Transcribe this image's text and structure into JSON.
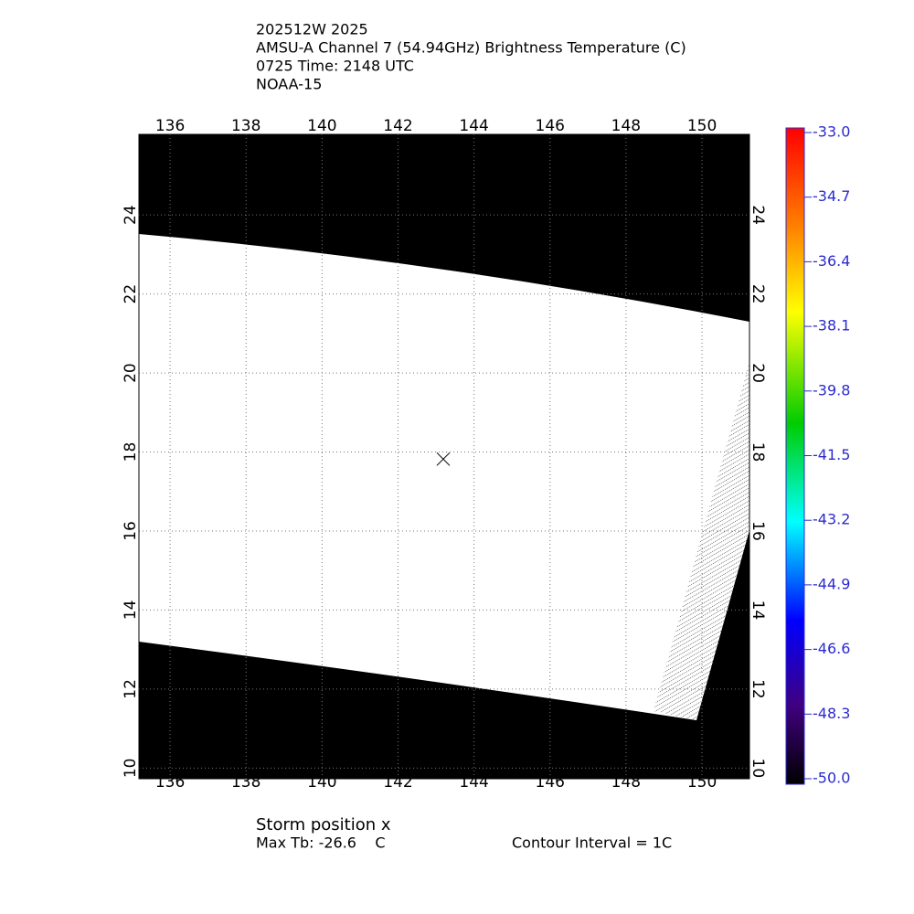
{
  "header": {
    "lines": [
      "202512W 2025",
      "AMSU-A Channel 7 (54.94GHz) Brightness Temperature (C)",
      "0725 Time: 2148 UTC",
      "NOAA-15"
    ]
  },
  "map": {
    "lonlim": [
      135.18,
      151.25
    ],
    "latlim": [
      9.73,
      26.04
    ],
    "lonticks": [
      136,
      138,
      140,
      142,
      144,
      146,
      148,
      150
    ],
    "latticks": [
      10,
      12,
      14,
      16,
      18,
      20,
      22,
      24
    ],
    "storm": {
      "lon": 143.19,
      "lat": 17.82
    }
  },
  "colorbar": {
    "lim": [
      -50,
      -33
    ],
    "ticks": [
      {
        "value": -33,
        "label": "-33.0"
      },
      -34.7,
      -36.4,
      -38.1,
      -39.8,
      -41.5,
      -43.2,
      -44.9,
      -46.6,
      -48.3,
      {
        "value": -50,
        "label": "-50.0"
      }
    ]
  },
  "footer": {
    "storm_label": "Storm position x",
    "max_tb": "Max Tb: -26.6    C",
    "contour": "Contour Interval = 1C"
  }
}
